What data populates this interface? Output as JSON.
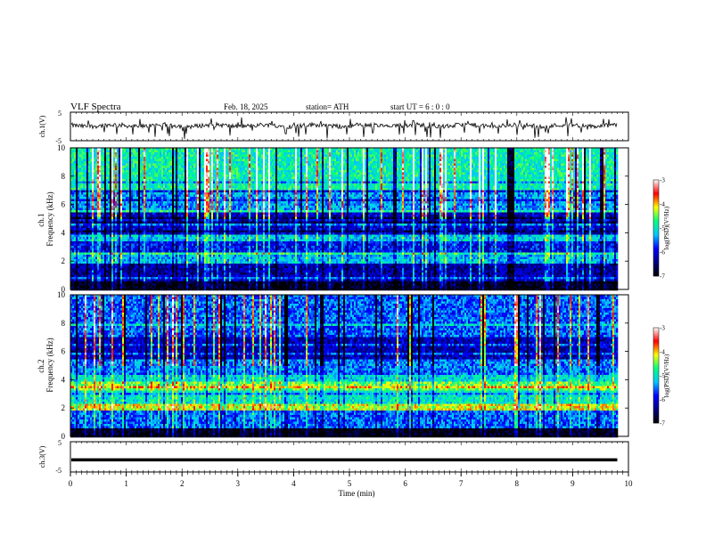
{
  "header": {
    "title": "VLF  Spectra",
    "date": "Feb. 18, 2025",
    "station": "station= ATH",
    "start_ut": "start  UT  =    6  : 0   : 0"
  },
  "chart_data": [
    {
      "type": "line",
      "panel": "ch1-waveform",
      "ylabel": "ch.1(V)",
      "yticks": [
        "5",
        "-5"
      ],
      "ylim": [
        -5,
        5
      ],
      "xlim": [
        0,
        10
      ],
      "approx_level": 0.3,
      "noise": "small fluctuations with frequent sharp negative spikes"
    },
    {
      "type": "heatmap",
      "panel": "ch1-spectrogram",
      "ylabel": "ch.1\nFrequency (kHz)",
      "ylabel_lines": [
        "ch.1",
        "Frequency (kHz)"
      ],
      "yticks": [
        "0",
        "2",
        "4",
        "6",
        "8",
        "10"
      ],
      "ylim": [
        0,
        10
      ],
      "xlim": [
        0,
        9.8
      ],
      "colorbar": {
        "label": "log(PSD)(V²/Hz)",
        "ticks": [
          "-3",
          "-4",
          "-5",
          "-6",
          "-7"
        ],
        "range": [
          -7,
          -3
        ]
      },
      "bands_khz_to_logpsd": [
        [
          0.0,
          0.5,
          -6.9
        ],
        [
          0.5,
          1.0,
          -6.2
        ],
        [
          1.0,
          1.8,
          -6.3
        ],
        [
          1.8,
          2.6,
          -5.3
        ],
        [
          2.6,
          3.4,
          -5.9
        ],
        [
          3.4,
          3.8,
          -5.2
        ],
        [
          3.8,
          5.4,
          -6.1
        ],
        [
          5.4,
          7.0,
          -5.4
        ],
        [
          7.0,
          10.0,
          -4.9
        ]
      ]
    },
    {
      "type": "heatmap",
      "panel": "ch2-spectrogram",
      "ylabel": "ch.2\nFrequency (kHz)",
      "ylabel_lines": [
        "ch.2",
        "Frequency (kHz)"
      ],
      "yticks": [
        "0",
        "2",
        "4",
        "6",
        "8",
        "10"
      ],
      "ylim": [
        0,
        10
      ],
      "xlim": [
        0,
        9.8
      ],
      "colorbar": {
        "label": "log(PSD)(V²/Hz)",
        "ticks": [
          "-3",
          "-4",
          "-5",
          "-6",
          "-7"
        ],
        "range": [
          -7,
          -3
        ]
      },
      "bands_khz_to_logpsd": [
        [
          0.0,
          0.5,
          -6.9
        ],
        [
          0.5,
          1.8,
          -5.6
        ],
        [
          1.8,
          2.3,
          -4.2
        ],
        [
          2.3,
          3.2,
          -5.0
        ],
        [
          3.2,
          3.8,
          -4.5
        ],
        [
          3.8,
          4.6,
          -5.1
        ],
        [
          4.6,
          5.5,
          -5.5
        ],
        [
          5.5,
          7.0,
          -6.2
        ],
        [
          7.0,
          10.0,
          -5.6
        ]
      ]
    },
    {
      "type": "line",
      "panel": "ch3-waveform",
      "ylabel": "ch.3(V)",
      "yticks": [
        "5",
        "-5"
      ],
      "ylim": [
        -5,
        5
      ],
      "xlim": [
        0,
        10
      ],
      "approx_level": -1.0
    }
  ],
  "xaxis": {
    "label": "Time  (min)",
    "ticks": [
      "0",
      "1",
      "2",
      "3",
      "4",
      "5",
      "6",
      "7",
      "8",
      "9",
      "10"
    ],
    "xlim": [
      0,
      10
    ]
  },
  "colors": {
    "colormap": [
      "#000000",
      "#000080",
      "#0000ff",
      "#00c8ff",
      "#00ff80",
      "#ffff00",
      "#ff0000",
      "#ffffff"
    ],
    "trace": "#000000"
  }
}
